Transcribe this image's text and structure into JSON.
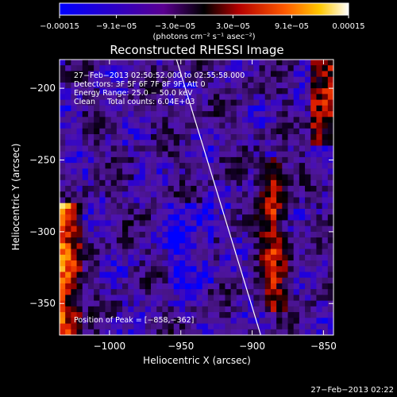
{
  "chart_data": {
    "type": "heatmap",
    "title": "Reconstructed RHESSI Image",
    "xlabel": "Heliocentric X (arcsec)",
    "ylabel": "Heliocentric Y (arcsec)",
    "xlim": [
      -1035,
      -843
    ],
    "ylim": [
      -372,
      -180
    ],
    "x_ticks": [
      -1000,
      -950,
      -900,
      -850
    ],
    "x_tick_labels": [
      "−1000",
      "−950",
      "−900",
      "−850"
    ],
    "y_ticks": [
      -200,
      -250,
      -300,
      -350
    ],
    "y_tick_labels": [
      "−200",
      "−250",
      "−300",
      "−350"
    ],
    "colorbar": {
      "min": -0.00015,
      "max": 0.00015,
      "ticks": [
        -0.00015,
        -9.1e-05,
        -3e-05,
        3e-05,
        9.1e-05,
        0.00015
      ],
      "tick_labels": [
        "−0.00015",
        "−9.1e−05",
        "−3.0e−05",
        "3.0e−05",
        "9.1e−05",
        "0.00015"
      ],
      "unit_label": "(photons cm⁻² s⁻¹ asec⁻²)"
    },
    "info_lines": [
      "27−Feb−2013 02:50:52.000 to 02:55:58.000",
      "Detectors: 3F 5F 6F 7F 8F 9F, Att 0",
      "Energy Range: 25.0 − 50.0 keV",
      "Clean     Total counts: 6.04E+03"
    ],
    "peak_label": "Position of Peak = [−858,−362]",
    "peak": [
      -858,
      -362
    ],
    "limb_line": [
      [
        -953,
        -180
      ],
      [
        -894,
        -372
      ]
    ]
  },
  "timestamp": "27−Feb−2013 02:22"
}
